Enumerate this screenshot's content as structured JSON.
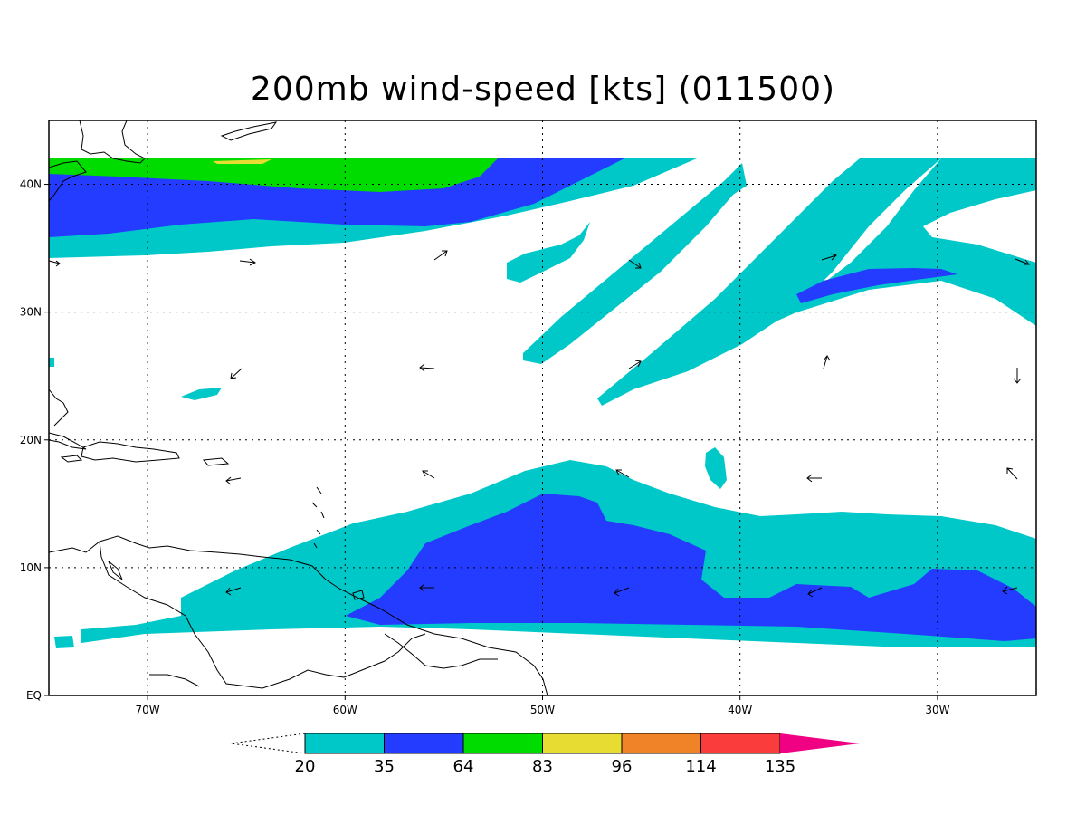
{
  "title": "200mb wind-speed [kts] (011500)",
  "map": {
    "lon_range": [
      -75,
      -25
    ],
    "lat_range": [
      0,
      45
    ],
    "x_ticks": [
      {
        "lon": -70,
        "label": "70W"
      },
      {
        "lon": -60,
        "label": "60W"
      },
      {
        "lon": -50,
        "label": "50W"
      },
      {
        "lon": -40,
        "label": "40W"
      },
      {
        "lon": -30,
        "label": "30W"
      }
    ],
    "y_ticks": [
      {
        "lat": 0,
        "label": "EQ"
      },
      {
        "lat": 10,
        "label": "10N"
      },
      {
        "lat": 20,
        "label": "20N"
      },
      {
        "lat": 30,
        "label": "30N"
      },
      {
        "lat": 40,
        "label": "40N"
      }
    ],
    "grid": "dotted"
  },
  "colorbar": {
    "levels": [
      "20",
      "35",
      "64",
      "83",
      "96",
      "114",
      "135"
    ],
    "colors": [
      "#00c8c8",
      "#233cff",
      "#00dc00",
      "#e6dc32",
      "#f08228",
      "#fa3c3c",
      "#f00082"
    ],
    "below_color": "#ffffff"
  },
  "colors": {
    "c20": "#00c8c8",
    "c35": "#233cff",
    "c64": "#00dc00",
    "c83": "#e6dc32"
  }
}
